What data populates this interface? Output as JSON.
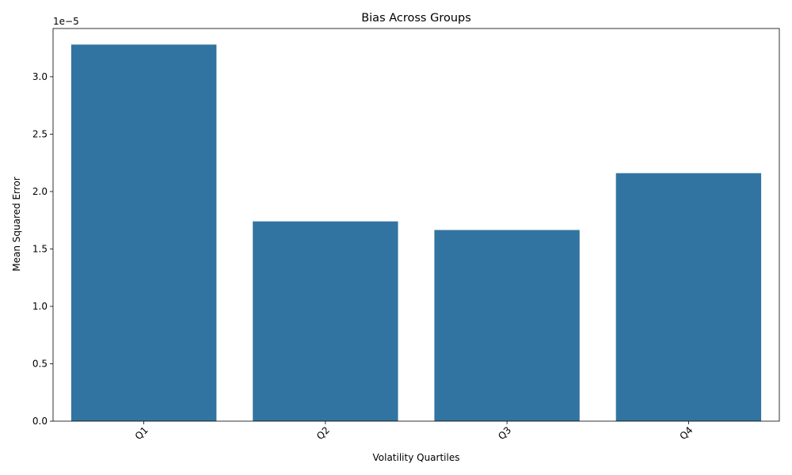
{
  "chart_data": {
    "type": "bar",
    "title": "Bias Across Groups",
    "xlabel": "Volatility Quartiles",
    "ylabel": "Mean Squared Error",
    "categories": [
      "Q1",
      "Q2",
      "Q3",
      "Q4"
    ],
    "values": [
      3.28e-05,
      1.74e-05,
      1.665e-05,
      2.16e-05
    ],
    "ylim": [
      0,
      3.42e-05
    ],
    "yticks": [
      0.0,
      5e-06,
      1e-05,
      1.5e-05,
      2e-05,
      2.5e-05,
      3e-05
    ],
    "ytick_labels": [
      "0.0",
      "0.5",
      "1.0",
      "1.5",
      "2.0",
      "2.5",
      "3.0"
    ],
    "scale_label": "1e−5",
    "grid": false,
    "bar_color": "#3274a1",
    "xtick_rotation_deg": 45
  }
}
